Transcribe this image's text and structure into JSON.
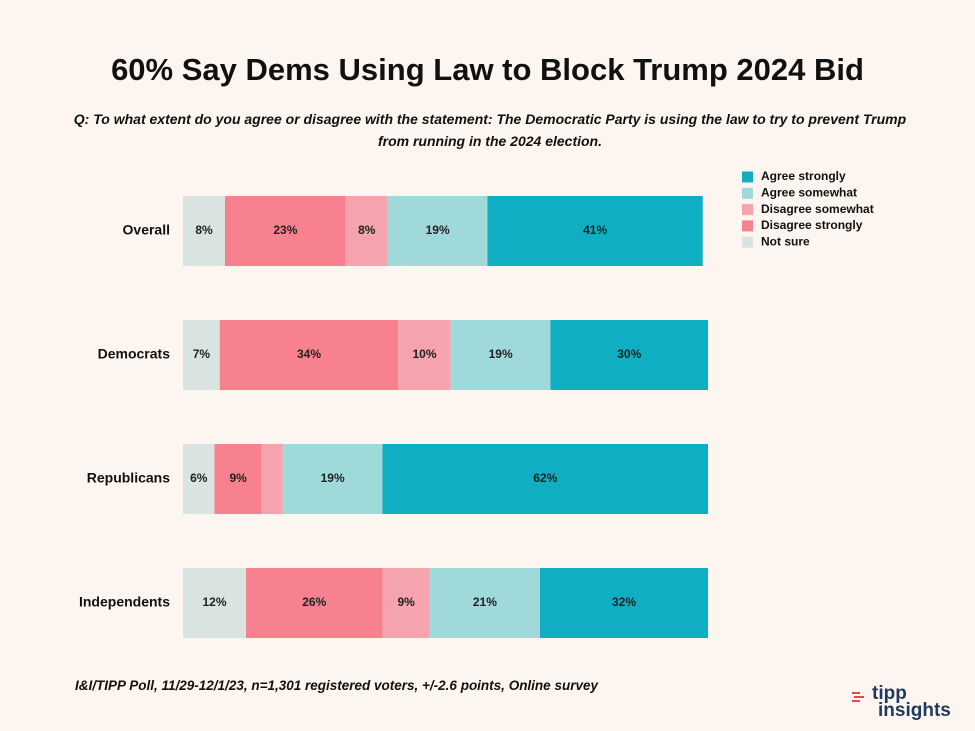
{
  "chart_data": {
    "type": "stacked-bar-horizontal",
    "title": "60% Say Dems Using Law to Block Trump 2024 Bid",
    "subtitle": "Q: To what extent do you agree or disagree with the statement: The Democratic Party is using the law to try to prevent Trump from running in the 2024 election.",
    "categories": [
      "Overall",
      "Democrats",
      "Republicans",
      "Independents"
    ],
    "xlim": [
      0,
      100
    ],
    "legend_position": "top-right",
    "series": [
      {
        "name": "Agree strongly",
        "color": "#10aec2",
        "values": [
          41,
          30,
          62,
          32
        ],
        "value_labels": [
          "41%",
          "30%",
          "62%",
          "32%"
        ]
      },
      {
        "name": "Agree somewhat",
        "color": "#a0d9da",
        "values": [
          19,
          19,
          19,
          21
        ],
        "value_labels": [
          "19%",
          "19%",
          "19%",
          "21%"
        ]
      },
      {
        "name": "Disagree somewhat",
        "color": "#f5a3ad",
        "values": [
          8,
          10,
          4,
          9
        ],
        "value_labels": [
          "8%",
          "10%",
          null,
          "9%"
        ]
      },
      {
        "name": "Disagree strongly",
        "color": "#f7818f",
        "values": [
          23,
          34,
          9,
          26
        ],
        "value_labels": [
          "23%",
          "34%",
          "9%",
          "26%"
        ]
      },
      {
        "name": "Not sure",
        "color": "#d9e4e0",
        "values": [
          8,
          7,
          6,
          12
        ],
        "value_labels": [
          "8%",
          "7%",
          "6%",
          "12%"
        ]
      }
    ],
    "source": "I&I/TIPP Poll, 11/29-12/1/23, n=1,301 registered voters, +/-2.6 points, Online survey"
  },
  "logo": [
    "tipp",
    "insights"
  ]
}
